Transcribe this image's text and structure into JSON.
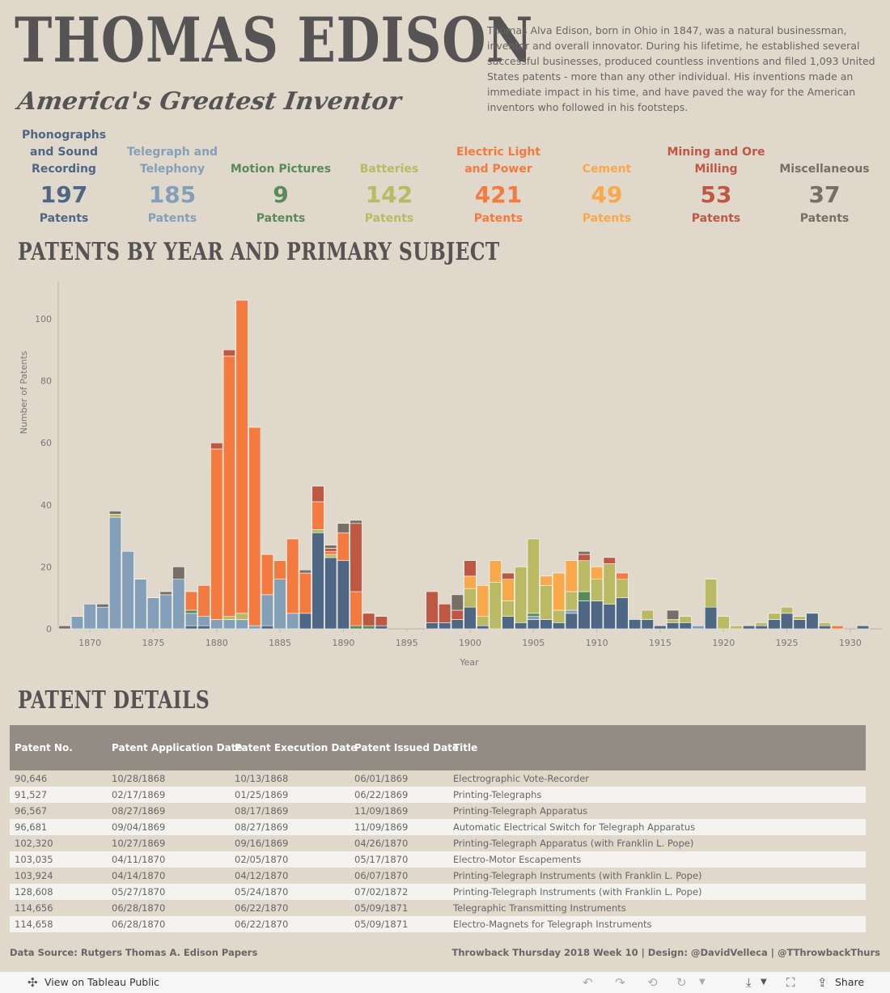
{
  "header": {
    "title": "THOMAS EDISON",
    "subtitle": "America's Greatest Inventor",
    "intro": "Thomas Alva Edison, born in Ohio in 1847, was a natural businessman, inventor and overall innovator.  During his lifetime, he established several successful businesses, produced countless inventions and filed 1,093 United States patents - more than any other individual.  His inventions made an immediate impact in his time, and have paved the way for the American inventors who followed in his footsteps."
  },
  "colors": {
    "background": "#e0d8cb",
    "phonographs": "#4e6784",
    "telegraph": "#84a0b8",
    "motion": "#5a8a5a",
    "batteries": "#b9ba63",
    "electric": "#f47b40",
    "cement": "#f9a84a",
    "mining": "#bf5843",
    "misc": "#776f66"
  },
  "kpis": [
    {
      "label": "Phonographs and Sound Recording",
      "value": "197",
      "unit": "Patents",
      "color": "#4e6784"
    },
    {
      "label": "Telegraph and Telephony",
      "value": "185",
      "unit": "Patents",
      "color": "#84a0b8"
    },
    {
      "label": "Motion Pictures",
      "value": "9",
      "unit": "Patents",
      "color": "#5a8a5a"
    },
    {
      "label": "Batteries",
      "value": "142",
      "unit": "Patents",
      "color": "#b9ba63"
    },
    {
      "label": "Electric Light and Power",
      "value": "421",
      "unit": "Patents",
      "color": "#f47b40"
    },
    {
      "label": "Cement",
      "value": "49",
      "unit": "Patents",
      "color": "#f9a84a"
    },
    {
      "label": "Mining and Ore Milling",
      "value": "53",
      "unit": "Patents",
      "color": "#bf5843"
    },
    {
      "label": "Miscellaneous",
      "value": "37",
      "unit": "Patents",
      "color": "#776f66"
    }
  ],
  "chart_title": "PATENTS BY YEAR AND PRIMARY SUBJECT",
  "chart_data": {
    "type": "bar",
    "stacked": true,
    "title": "PATENTS BY YEAR AND PRIMARY SUBJECT",
    "xlabel": "Year",
    "ylabel": "Number of Patents",
    "xlim": [
      1868,
      1932
    ],
    "ylim": [
      0,
      112
    ],
    "xticks": [
      1870,
      1875,
      1880,
      1885,
      1890,
      1895,
      1900,
      1905,
      1910,
      1915,
      1920,
      1925,
      1930
    ],
    "yticks": [
      0,
      20,
      40,
      60,
      80,
      100
    ],
    "series_order": [
      "phon",
      "tele",
      "motion",
      "batt",
      "elec",
      "cem",
      "mine",
      "misc"
    ],
    "series_names": {
      "phon": "Phonographs and Sound Recording",
      "tele": "Telegraph and Telephony",
      "motion": "Motion Pictures",
      "batt": "Batteries",
      "elec": "Electric Light and Power",
      "cem": "Cement",
      "mine": "Mining and Ore Milling",
      "misc": "Miscellaneous"
    },
    "years": [
      {
        "year": 1868,
        "misc": 1
      },
      {
        "year": 1869,
        "tele": 4
      },
      {
        "year": 1870,
        "tele": 8
      },
      {
        "year": 1871,
        "tele": 7,
        "misc": 1
      },
      {
        "year": 1872,
        "tele": 36,
        "misc": 1,
        "batt": 1
      },
      {
        "year": 1873,
        "tele": 25
      },
      {
        "year": 1874,
        "tele": 16
      },
      {
        "year": 1875,
        "tele": 10
      },
      {
        "year": 1876,
        "tele": 11,
        "misc": 1
      },
      {
        "year": 1877,
        "tele": 16,
        "misc": 4
      },
      {
        "year": 1878,
        "tele": 4,
        "phon": 1,
        "motion": 1,
        "elec": 6
      },
      {
        "year": 1879,
        "tele": 3,
        "phon": 1,
        "elec": 10
      },
      {
        "year": 1880,
        "tele": 3,
        "elec": 55,
        "mine": 2
      },
      {
        "year": 1881,
        "tele": 3,
        "elec": 84,
        "mine": 2,
        "batt": 1
      },
      {
        "year": 1882,
        "tele": 3,
        "elec": 101,
        "batt": 2
      },
      {
        "year": 1883,
        "tele": 1,
        "elec": 64
      },
      {
        "year": 1884,
        "tele": 10,
        "phon": 1,
        "elec": 13
      },
      {
        "year": 1885,
        "tele": 16,
        "elec": 6
      },
      {
        "year": 1886,
        "tele": 5,
        "elec": 24
      },
      {
        "year": 1887,
        "phon": 5,
        "misc": 1,
        "elec": 13
      },
      {
        "year": 1888,
        "phon": 31,
        "mine": 5,
        "elec": 9,
        "batt": 1
      },
      {
        "year": 1889,
        "phon": 23,
        "misc": 1,
        "mine": 1,
        "elec": 1,
        "batt": 1
      },
      {
        "year": 1890,
        "phon": 22,
        "misc": 3,
        "elec": 9
      },
      {
        "year": 1891,
        "motion": 1,
        "misc": 1,
        "mine": 22,
        "elec": 11
      },
      {
        "year": 1892,
        "motion": 1,
        "mine": 4
      },
      {
        "year": 1893,
        "phon": 1,
        "mine": 3
      },
      {
        "year": 1897,
        "phon": 2,
        "mine": 10
      },
      {
        "year": 1898,
        "phon": 2,
        "mine": 6
      },
      {
        "year": 1899,
        "phon": 3,
        "misc": 5,
        "mine": 3
      },
      {
        "year": 1900,
        "phon": 7,
        "mine": 5,
        "cem": 4,
        "batt": 6
      },
      {
        "year": 1901,
        "phon": 1,
        "batt": 3,
        "cem": 10
      },
      {
        "year": 1902,
        "cem": 7,
        "batt": 15
      },
      {
        "year": 1903,
        "phon": 4,
        "cem": 7,
        "batt": 5,
        "mine": 2
      },
      {
        "year": 1904,
        "phon": 2,
        "batt": 18
      },
      {
        "year": 1905,
        "tele": 1,
        "phon": 3,
        "motion": 1,
        "batt": 24
      },
      {
        "year": 1906,
        "phon": 3,
        "cem": 3,
        "batt": 11
      },
      {
        "year": 1907,
        "phon": 2,
        "cem": 12,
        "batt": 4
      },
      {
        "year": 1908,
        "tele": 1,
        "phon": 5,
        "cem": 10,
        "batt": 6
      },
      {
        "year": 1909,
        "phon": 9,
        "motion": 3,
        "misc": 1,
        "mine": 2,
        "batt": 10
      },
      {
        "year": 1910,
        "phon": 9,
        "cem": 4,
        "batt": 7
      },
      {
        "year": 1911,
        "phon": 8,
        "mine": 2,
        "batt": 13
      },
      {
        "year": 1912,
        "phon": 10,
        "elec": 2,
        "batt": 6
      },
      {
        "year": 1913,
        "phon": 3
      },
      {
        "year": 1914,
        "phon": 3,
        "batt": 3
      },
      {
        "year": 1915,
        "phon": 1
      },
      {
        "year": 1916,
        "phon": 2,
        "misc": 3,
        "batt": 1
      },
      {
        "year": 1917,
        "phon": 2,
        "batt": 2
      },
      {
        "year": 1918,
        "tele": 1
      },
      {
        "year": 1919,
        "phon": 7,
        "batt": 9
      },
      {
        "year": 1920,
        "batt": 4
      },
      {
        "year": 1921,
        "batt": 1
      },
      {
        "year": 1922,
        "phon": 1
      },
      {
        "year": 1923,
        "phon": 1,
        "batt": 1
      },
      {
        "year": 1924,
        "phon": 3,
        "batt": 2
      },
      {
        "year": 1925,
        "phon": 5,
        "batt": 2
      },
      {
        "year": 1926,
        "phon": 3,
        "batt": 1
      },
      {
        "year": 1927,
        "phon": 5
      },
      {
        "year": 1928,
        "phon": 1,
        "batt": 1
      },
      {
        "year": 1929,
        "elec": 1
      },
      {
        "year": 1931,
        "phon": 1
      }
    ]
  },
  "details_title": "PATENT DETAILS",
  "table": {
    "headers": [
      "Patent No.",
      "Patent Application Date",
      "Patent Execution Date",
      "Patent Issued Date",
      "Title"
    ],
    "rows": [
      [
        "90,646",
        "10/28/1868",
        "10/13/1868",
        "06/01/1869",
        "Electrographic Vote-Recorder"
      ],
      [
        "91,527",
        "02/17/1869",
        "01/25/1869",
        "06/22/1869",
        "Printing-Telegraphs"
      ],
      [
        "96,567",
        "08/27/1869",
        "08/17/1869",
        "11/09/1869",
        "Printing-Telegraph Apparatus"
      ],
      [
        "96,681",
        "09/04/1869",
        "08/27/1869",
        "11/09/1869",
        "Automatic Electrical Switch for Telegraph Apparatus"
      ],
      [
        "102,320",
        "10/27/1869",
        "09/16/1869",
        "04/26/1870",
        "Printing-Telegraph Apparatus (with Franklin L. Pope)"
      ],
      [
        "103,035",
        "04/11/1870",
        "02/05/1870",
        "05/17/1870",
        "Electro-Motor Escapements"
      ],
      [
        "103,924",
        "04/14/1870",
        "04/12/1870",
        "06/07/1870",
        "Printing-Telegraph Instruments (with Franklin L. Pope)"
      ],
      [
        "128,608",
        "05/27/1870",
        "05/24/1870",
        "07/02/1872",
        "Printing-Telegraph Instruments (with Franklin L. Pope)"
      ],
      [
        "114,656",
        "06/28/1870",
        "06/22/1870",
        "05/09/1871",
        "Telegraphic Transmitting Instruments"
      ],
      [
        "114,658",
        "06/28/1870",
        "06/22/1870",
        "05/09/1871",
        "Electro-Magnets for Telegraph Instruments"
      ]
    ]
  },
  "footer": {
    "source": "Data Source: Rutgers Thomas A. Edison Papers",
    "credit": "Throwback Thursday 2018 Week 10 | Design: @DavidVelleca | @TThrowbackThurs"
  },
  "toolbar": {
    "view_label": "View on Tableau Public",
    "share_label": "Share"
  }
}
